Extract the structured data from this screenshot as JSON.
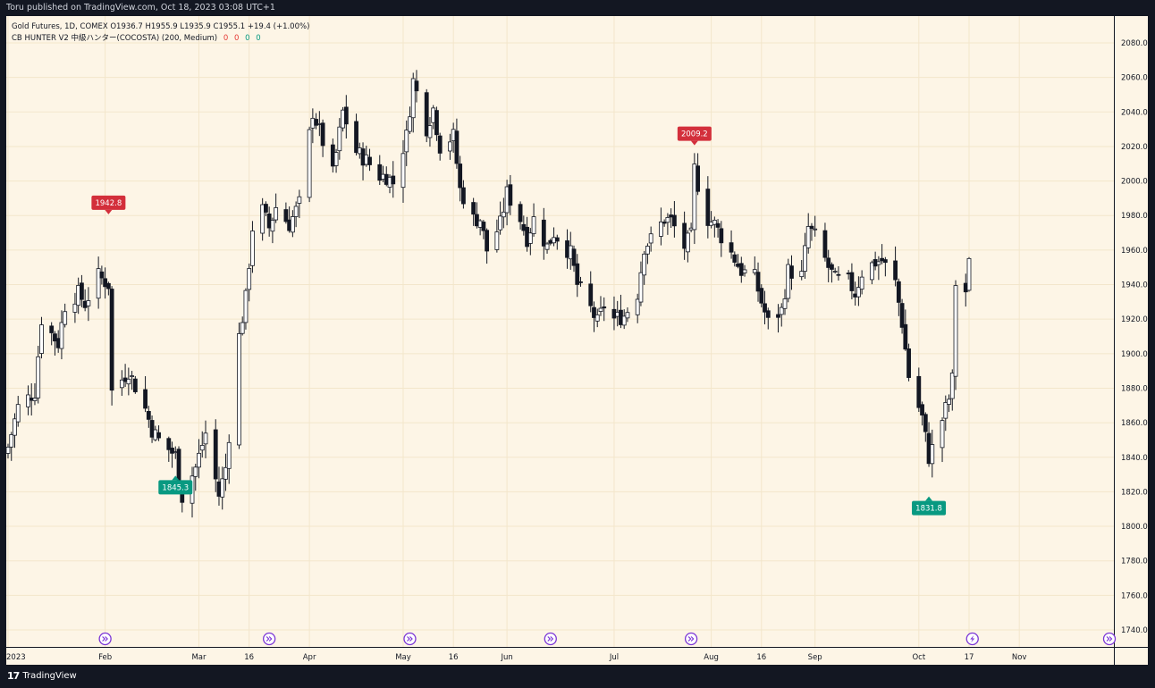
{
  "header": {
    "published_text": "Toru published on TradingView.com, Oct 18, 2023 03:08 UTC+1"
  },
  "legend": {
    "symbol_line": "Gold Futures, 1D, COMEX  O1936.7  H1955.9  L1935.9  C1955.1  +19.4 (+1.00%)",
    "indicator_name": "CB HUNTER V2 中級ハンター(COCOSTA) (200, Medium)",
    "indicator_values": [
      "0",
      "0",
      "0",
      "0"
    ]
  },
  "footer": {
    "brand_glyph": "17",
    "brand_name": "TradingView"
  },
  "colors": {
    "background": "#fdf5e6",
    "frame": "#131722",
    "grid": "#f3e6cb",
    "candle_up": "#ffffff",
    "candle_down": "#131722",
    "candle_outline": "#131722",
    "label_high": "#d32f3b",
    "label_low": "#089981",
    "marker": "#7b36d6"
  },
  "chart_data": {
    "type": "candlestick",
    "title": "",
    "xlabel": "",
    "ylabel": "",
    "ylim": [
      1730,
      2090
    ],
    "y_ticks": [
      "1740.0",
      "1760.0",
      "1780.0",
      "1800.0",
      "1820.0",
      "1840.0",
      "1860.0",
      "1880.0",
      "1900.0",
      "1920.0",
      "1940.0",
      "1960.0",
      "1980.0",
      "2000.0",
      "2020.0",
      "2040.0",
      "2060.0",
      "2080.0"
    ],
    "x_ticks": [
      {
        "label": "2023",
        "date": "2023-01-03"
      },
      {
        "label": "Feb",
        "date": "2023-02-01"
      },
      {
        "label": "Mar",
        "date": "2023-03-01"
      },
      {
        "label": "16",
        "date": "2023-03-16"
      },
      {
        "label": "Apr",
        "date": "2023-04-03"
      },
      {
        "label": "May",
        "date": "2023-05-01"
      },
      {
        "label": "16",
        "date": "2023-05-16"
      },
      {
        "label": "Jun",
        "date": "2023-06-01"
      },
      {
        "label": "Jul",
        "date": "2023-07-03"
      },
      {
        "label": "Aug",
        "date": "2023-08-01"
      },
      {
        "label": "16",
        "date": "2023-08-16"
      },
      {
        "label": "Sep",
        "date": "2023-09-01"
      },
      {
        "label": "Oct",
        "date": "2023-10-02"
      },
      {
        "label": "17",
        "date": "2023-10-17"
      },
      {
        "label": "Nov",
        "date": "2023-11-01"
      }
    ],
    "x_range": [
      "2023-01-03",
      "2023-11-30"
    ],
    "grid": true,
    "annotations": [
      {
        "label": "1942.8",
        "type": "high",
        "date": "2023-02-02",
        "value": 1975
      },
      {
        "label": "1845.3",
        "type": "low",
        "date": "2023-02-22",
        "value": 1835
      },
      {
        "label": "2009.2",
        "type": "high",
        "date": "2023-07-27",
        "value": 2015
      },
      {
        "label": "1831.8",
        "type": "low",
        "date": "2023-10-05",
        "value": 1823
      }
    ],
    "event_markers": [
      {
        "date": "2023-02-01",
        "icon": "fast-forward-icon"
      },
      {
        "date": "2023-03-22",
        "icon": "fast-forward-icon"
      },
      {
        "date": "2023-05-03",
        "icon": "fast-forward-icon"
      },
      {
        "date": "2023-06-14",
        "icon": "fast-forward-icon"
      },
      {
        "date": "2023-07-26",
        "icon": "fast-forward-icon"
      },
      {
        "date": "2023-10-18",
        "icon": "lightning-icon"
      },
      {
        "date": "2023-12-13",
        "icon": "fast-forward-icon"
      }
    ],
    "close_path": [
      [
        "2023-01-03",
        1846
      ],
      [
        "2023-01-06",
        1869
      ],
      [
        "2023-01-11",
        1878
      ],
      [
        "2023-01-13",
        1920
      ],
      [
        "2023-01-18",
        1906
      ],
      [
        "2023-01-20",
        1928
      ],
      [
        "2023-01-24",
        1935
      ],
      [
        "2023-01-26",
        1929
      ],
      [
        "2023-01-30",
        1945
      ],
      [
        "2023-02-02",
        1940
      ],
      [
        "2023-02-03",
        1878
      ],
      [
        "2023-02-08",
        1890
      ],
      [
        "2023-02-13",
        1868
      ],
      [
        "2023-02-15",
        1856
      ],
      [
        "2023-02-17",
        1850
      ],
      [
        "2023-02-22",
        1841
      ],
      [
        "2023-02-24",
        1817
      ],
      [
        "2023-02-28",
        1834
      ],
      [
        "2023-03-03",
        1854
      ],
      [
        "2023-03-07",
        1818
      ],
      [
        "2023-03-09",
        1834
      ],
      [
        "2023-03-13",
        1910
      ],
      [
        "2023-03-15",
        1932
      ],
      [
        "2023-03-17",
        1973
      ],
      [
        "2023-03-20",
        1983
      ],
      [
        "2023-03-22",
        1973
      ],
      [
        "2023-03-24",
        1985
      ],
      [
        "2023-03-28",
        1975
      ],
      [
        "2023-03-31",
        1987
      ],
      [
        "2023-04-04",
        2040
      ],
      [
        "2023-04-06",
        2029
      ],
      [
        "2023-04-10",
        2004
      ],
      [
        "2023-04-13",
        2040
      ],
      [
        "2023-04-17",
        2017
      ],
      [
        "2023-04-20",
        2012
      ],
      [
        "2023-04-24",
        2003
      ],
      [
        "2023-04-26",
        2003
      ],
      [
        "2023-04-28",
        1999
      ],
      [
        "2023-05-02",
        2026
      ],
      [
        "2023-05-04",
        2058
      ],
      [
        "2023-05-08",
        2031
      ],
      [
        "2023-05-10",
        2042
      ],
      [
        "2023-05-12",
        2020
      ],
      [
        "2023-05-16",
        2026
      ],
      [
        "2023-05-18",
        1995
      ],
      [
        "2023-05-22",
        1978
      ],
      [
        "2023-05-24",
        1978
      ],
      [
        "2023-05-26",
        1960
      ],
      [
        "2023-05-30",
        1975
      ],
      [
        "2023-06-01",
        1993
      ],
      [
        "2023-06-05",
        1978
      ],
      [
        "2023-06-07",
        1967
      ],
      [
        "2023-06-09",
        1978
      ],
      [
        "2023-06-13",
        1962
      ],
      [
        "2023-06-15",
        1970
      ],
      [
        "2023-06-20",
        1958
      ],
      [
        "2023-06-22",
        1940
      ],
      [
        "2023-06-26",
        1926
      ],
      [
        "2023-06-28",
        1918
      ],
      [
        "2023-06-30",
        1928
      ],
      [
        "2023-07-03",
        1920
      ],
      [
        "2023-07-06",
        1922
      ],
      [
        "2023-07-10",
        1935
      ],
      [
        "2023-07-12",
        1962
      ],
      [
        "2023-07-14",
        1966
      ],
      [
        "2023-07-18",
        1978
      ],
      [
        "2023-07-20",
        1977
      ],
      [
        "2023-07-24",
        1962
      ],
      [
        "2023-07-26",
        1968
      ],
      [
        "2023-07-27",
        2007
      ],
      [
        "2023-07-28",
        1998
      ],
      [
        "2023-07-31",
        1978
      ],
      [
        "2023-08-02",
        1975
      ],
      [
        "2023-08-04",
        1968
      ],
      [
        "2023-08-08",
        1955
      ],
      [
        "2023-08-10",
        1948
      ],
      [
        "2023-08-14",
        1944
      ],
      [
        "2023-08-16",
        1930
      ],
      [
        "2023-08-18",
        1918
      ],
      [
        "2023-08-22",
        1925
      ],
      [
        "2023-08-24",
        1948
      ],
      [
        "2023-08-28",
        1945
      ],
      [
        "2023-08-30",
        1973
      ],
      [
        "2023-09-01",
        1968
      ],
      [
        "2023-09-05",
        1950
      ],
      [
        "2023-09-07",
        1943
      ],
      [
        "2023-09-11",
        1942
      ],
      [
        "2023-09-13",
        1935
      ],
      [
        "2023-09-15",
        1947
      ],
      [
        "2023-09-19",
        1953
      ],
      [
        "2023-09-21",
        1954
      ],
      [
        "2023-09-25",
        1941
      ],
      [
        "2023-09-27",
        1918
      ],
      [
        "2023-09-29",
        1887
      ],
      [
        "2023-10-03",
        1863
      ],
      [
        "2023-10-05",
        1840
      ],
      [
        "2023-10-06",
        1845
      ],
      [
        "2023-10-09",
        1862
      ],
      [
        "2023-10-11",
        1874
      ],
      [
        "2023-10-12",
        1885
      ],
      [
        "2023-10-13",
        1941
      ],
      [
        "2023-10-16",
        1936
      ],
      [
        "2023-10-17",
        1955.1
      ]
    ]
  }
}
